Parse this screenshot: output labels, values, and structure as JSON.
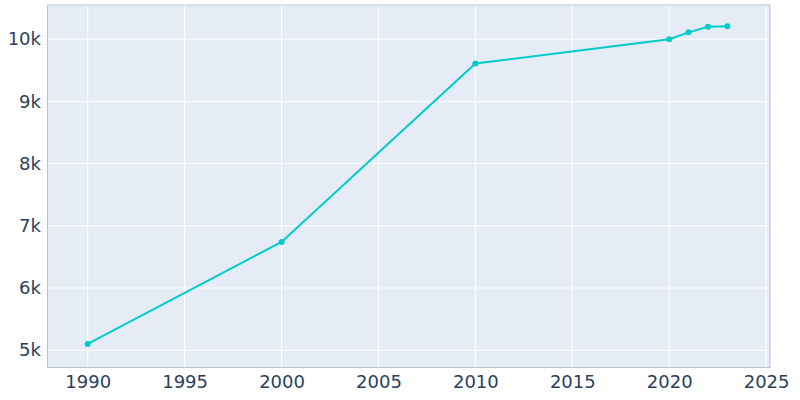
{
  "chart_data": {
    "type": "line",
    "x": [
      1990,
      2000,
      2010,
      2020,
      2021,
      2022,
      2023
    ],
    "values": [
      5100,
      6740,
      9610,
      10000,
      10110,
      10200,
      10210
    ],
    "color": "#00cccc",
    "marker": "circle",
    "xlim": [
      1987.9,
      2025.2
    ],
    "ylim": [
      4730,
      10550
    ],
    "xticks": [
      1990,
      1995,
      2000,
      2005,
      2010,
      2015,
      2020,
      2025
    ],
    "yticks": [
      {
        "value": 5000,
        "label": "5k"
      },
      {
        "value": 6000,
        "label": "6k"
      },
      {
        "value": 7000,
        "label": "7k"
      },
      {
        "value": 8000,
        "label": "8k"
      },
      {
        "value": 9000,
        "label": "9k"
      },
      {
        "value": 10000,
        "label": "10k"
      }
    ],
    "grid": true
  }
}
